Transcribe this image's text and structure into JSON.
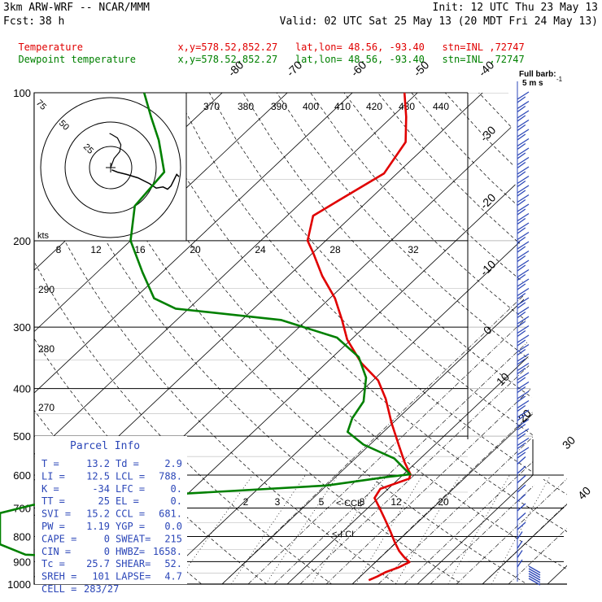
{
  "header": {
    "model": "3km ARW-WRF -- NCAR/MMM",
    "init": "Init: 12 UTC Thu 23 May 13",
    "fcst_label": "Fcst:",
    "fcst_value": "38 h",
    "valid": "Valid: 02 UTC Sat 25 May 13 (20 MDT Fri 24 May 13)"
  },
  "legend": [
    {
      "label": "Temperature",
      "info": "x,y=578.52,852.27   lat,lon= 48.56, -93.40   stn=INL ,72747",
      "color": "#e00000"
    },
    {
      "label": "Dewpoint temperature",
      "info": "x,y=578.52,852.27   lat,lon= 48.56, -93.40   stn=INL ,72747",
      "color": "#008000"
    }
  ],
  "full_barb": {
    "line1": "Full barb:",
    "line2": "5 m s",
    "sup": "-1"
  },
  "hodograph": {
    "ring_labels": [
      "75",
      "50",
      "25"
    ],
    "units": "kts"
  },
  "parcel_info": {
    "title": "Parcel Info",
    "rows": [
      [
        "T  =",
        "13.2",
        "Td =",
        "2.9"
      ],
      [
        "LI =",
        "12.5",
        "LCL =",
        "788."
      ],
      [
        "K  =",
        "-34",
        "LFC =",
        "0."
      ],
      [
        "TT =",
        "25",
        "EL  =",
        "0."
      ],
      [
        "SVI =",
        "15.2",
        "CCL =",
        "681."
      ],
      [
        "PW =",
        "1.19",
        "YGP =",
        "0.0"
      ],
      [
        "CAPE =",
        "0",
        "SWEAT=",
        "215"
      ],
      [
        "CIN =",
        "0",
        "HWBZ=",
        "1658."
      ],
      [
        "Tc =",
        "25.7",
        "SHEAR=",
        "52."
      ],
      [
        "SREH =",
        "101",
        "LAPSE=",
        "4.7"
      ],
      [
        "CELL =",
        "283/27",
        "",
        ""
      ]
    ]
  },
  "level_markers": {
    "ccl": "<-CCL",
    "lcl": "<-LCL"
  },
  "chart_data": {
    "type": "skew-t",
    "yscale": "log",
    "ylim": [
      1000,
      100
    ],
    "pressure_levels": [
      1000,
      900,
      800,
      700,
      600,
      500,
      400,
      300,
      200,
      100
    ],
    "isotherm_labels": [
      -80,
      -70,
      -60,
      -50,
      -40,
      -30,
      -20,
      -10,
      0,
      10,
      20,
      30,
      40
    ],
    "theta_labels": [
      370,
      380,
      390,
      400,
      410,
      420,
      430,
      440
    ],
    "theta_labels_lower": [
      290,
      280,
      270
    ],
    "mixing_ratio_labels": [
      2,
      3,
      5,
      8,
      12,
      20
    ],
    "equiv_temp_labels": [
      8,
      12,
      16,
      20,
      24,
      28,
      32
    ],
    "series": [
      {
        "name": "Temperature",
        "color": "#e00000",
        "points": [
          [
            982,
            11.9
          ],
          [
            965,
            12.6
          ],
          [
            945,
            13.2
          ],
          [
            925,
            14.4
          ],
          [
            902,
            15.2
          ],
          [
            880,
            13.5
          ],
          [
            856,
            11.8
          ],
          [
            820,
            9.6
          ],
          [
            780,
            7.2
          ],
          [
            740,
            4.6
          ],
          [
            700,
            1.8
          ],
          [
            668,
            -0.6
          ],
          [
            640,
            -1.2
          ],
          [
            610,
            1.6
          ],
          [
            597,
            1.0
          ],
          [
            565,
            -1.8
          ],
          [
            520,
            -5.6
          ],
          [
            470,
            -10.2
          ],
          [
            420,
            -15.0
          ],
          [
            385,
            -19.2
          ],
          [
            355,
            -24.6
          ],
          [
            318,
            -30.6
          ],
          [
            290,
            -34.6
          ],
          [
            262,
            -39.2
          ],
          [
            236,
            -44.8
          ],
          [
            212,
            -49.9
          ],
          [
            200,
            -52.8
          ],
          [
            178,
            -56.0
          ],
          [
            166,
            -54.6
          ],
          [
            146,
            -52.0
          ],
          [
            126,
            -53.8
          ],
          [
            112,
            -57.8
          ],
          [
            100,
            -62.0
          ]
        ]
      },
      {
        "name": "Dewpoint temperature",
        "color": "#008000",
        "points": [
          [
            967,
            -18.5
          ],
          [
            933,
            -20.6
          ],
          [
            905,
            -24.5
          ],
          [
            885,
            -32.0
          ],
          [
            871,
            -45.0
          ],
          [
            830,
            -90.0
          ],
          [
            810,
            -130.0
          ],
          [
            760,
            -95.0
          ],
          [
            740,
            -78.0
          ],
          [
            717,
            -66.0
          ],
          [
            690,
            -52.0
          ],
          [
            660,
            -35.0
          ],
          [
            630,
            -10.0
          ],
          [
            605,
            -2.0
          ],
          [
            598,
            1.0
          ],
          [
            555,
            -4.0
          ],
          [
            520,
            -11.0
          ],
          [
            490,
            -15.5
          ],
          [
            460,
            -17.0
          ],
          [
            425,
            -18.0
          ],
          [
            380,
            -21.5
          ],
          [
            345,
            -26.0
          ],
          [
            315,
            -32.5
          ],
          [
            290,
            -44.0
          ],
          [
            275,
            -62.0
          ],
          [
            262,
            -67.0
          ],
          [
            232,
            -73.0
          ],
          [
            200,
            -80.0
          ],
          [
            170,
            -85.0
          ],
          [
            145,
            -86.0
          ],
          [
            125,
            -92.0
          ],
          [
            112,
            -97.0
          ],
          [
            100,
            -102.0
          ]
        ]
      }
    ],
    "hodograph_trace": [
      [
        1,
        -2
      ],
      [
        6,
        -4
      ],
      [
        14,
        -6
      ],
      [
        24,
        -9
      ],
      [
        34,
        -14
      ],
      [
        40,
        -18
      ],
      [
        46,
        -17
      ],
      [
        50,
        -19
      ],
      [
        53,
        -16
      ],
      [
        56,
        -10
      ],
      [
        58,
        -6
      ],
      [
        60,
        -8
      ]
    ],
    "hodograph_upper": [
      [
        0,
        0
      ],
      [
        3,
        8
      ],
      [
        8,
        14
      ],
      [
        9,
        20
      ],
      [
        6,
        26
      ],
      [
        1,
        29
      ],
      [
        -1,
        30
      ]
    ]
  }
}
